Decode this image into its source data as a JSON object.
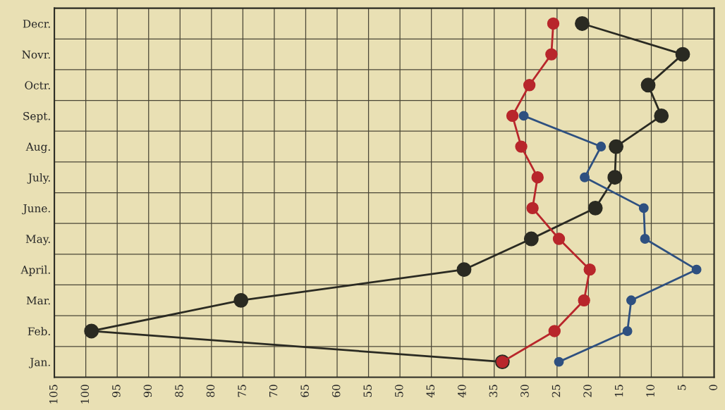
{
  "chart_data": {
    "type": "line",
    "orientation": "horizontal",
    "categories": [
      "Decr.",
      "Novr.",
      "Octr.",
      "Sept.",
      "Aug.",
      "July.",
      "June.",
      "May.",
      "April.",
      "Mar.",
      "Feb.",
      "Jan."
    ],
    "series": [
      {
        "color": "#2a2a22",
        "values": [
          21,
          5,
          10.5,
          8.4,
          15.6,
          15.8,
          18.9,
          29.1,
          39.8,
          75.3,
          99.1,
          33.7
        ]
      },
      {
        "color": "#b8262b",
        "values": [
          25.6,
          25.9,
          29.4,
          32.1,
          30.7,
          28.1,
          28.9,
          24.7,
          19.8,
          20.7,
          25.4,
          33.7
        ]
      },
      {
        "color": "#2e5080",
        "values": [
          null,
          null,
          null,
          30.3,
          18.0,
          20.6,
          11.2,
          11.0,
          2.8,
          13.2,
          13.8,
          24.7
        ]
      }
    ],
    "xlim": [
      105,
      0
    ],
    "xticks": [
      105,
      100,
      95,
      90,
      85,
      80,
      75,
      70,
      65,
      60,
      55,
      50,
      45,
      40,
      35,
      30,
      25,
      20,
      15,
      10,
      5,
      0
    ],
    "grid": true,
    "marker": "circle",
    "line_style": "solid"
  }
}
